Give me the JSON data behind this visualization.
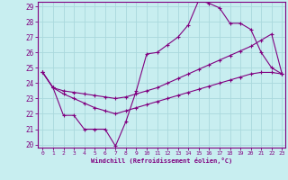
{
  "xlabel": "Windchill (Refroidissement éolien,°C)",
  "bg_color": "#c8eef0",
  "line_color": "#800080",
  "grid_color": "#aad8dc",
  "xmin": 0,
  "xmax": 23,
  "ymin": 20,
  "ymax": 29,
  "line1_x": [
    0,
    1,
    2,
    3,
    4,
    5,
    6,
    7,
    8,
    9,
    10,
    11,
    12,
    13,
    14,
    15,
    16,
    17,
    18,
    19,
    20,
    21,
    22,
    23
  ],
  "line1_y": [
    24.7,
    23.7,
    21.9,
    21.9,
    21.0,
    21.0,
    21.0,
    19.9,
    21.5,
    23.5,
    25.9,
    26.0,
    26.5,
    27.0,
    27.8,
    29.4,
    29.2,
    28.9,
    27.9,
    27.9,
    27.5,
    26.0,
    25.0,
    24.6
  ],
  "line2_x": [
    0,
    1,
    2,
    3,
    4,
    5,
    6,
    7,
    8,
    9,
    10,
    11,
    12,
    13,
    14,
    15,
    16,
    17,
    18,
    19,
    20,
    21,
    22,
    23
  ],
  "line2_y": [
    24.7,
    23.7,
    23.5,
    23.4,
    23.3,
    23.2,
    23.1,
    23.0,
    23.1,
    23.3,
    23.5,
    23.7,
    24.0,
    24.3,
    24.6,
    24.9,
    25.2,
    25.5,
    25.8,
    26.1,
    26.4,
    26.8,
    27.2,
    24.6
  ],
  "line3_x": [
    0,
    1,
    2,
    3,
    4,
    5,
    6,
    7,
    8,
    9,
    10,
    11,
    12,
    13,
    14,
    15,
    16,
    17,
    18,
    19,
    20,
    21,
    22,
    23
  ],
  "line3_y": [
    24.7,
    23.7,
    23.3,
    23.0,
    22.7,
    22.4,
    22.2,
    22.0,
    22.2,
    22.4,
    22.6,
    22.8,
    23.0,
    23.2,
    23.4,
    23.6,
    23.8,
    24.0,
    24.2,
    24.4,
    24.6,
    24.7,
    24.7,
    24.6
  ]
}
